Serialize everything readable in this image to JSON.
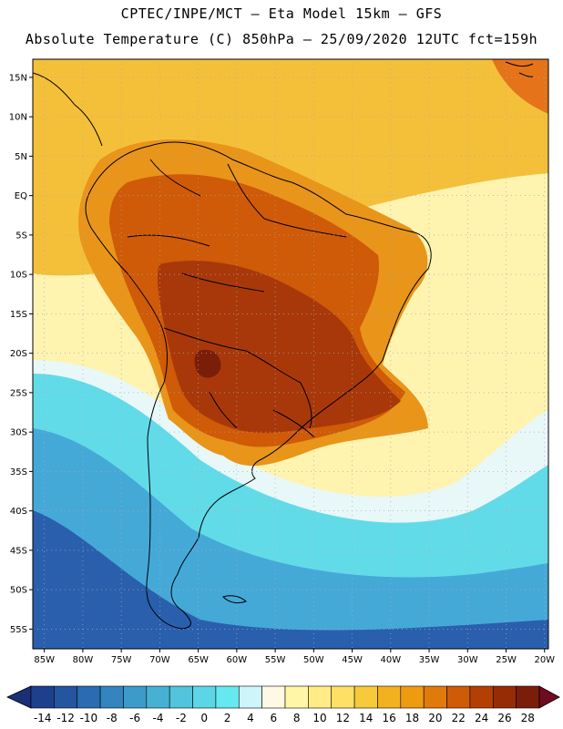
{
  "header": {
    "line1": "CPTEC/INPE/MCT –  Eta Model 15km – GFS",
    "line2": "Absolute Temperature (C) 850hPa – 25/09/2020 12UTC fct=159h"
  },
  "axes": {
    "lat_labels": [
      "15N",
      "10N",
      "5N",
      "EQ",
      "5S",
      "10S",
      "15S",
      "20S",
      "25S",
      "30S",
      "35S",
      "40S",
      "45S",
      "50S",
      "55S"
    ],
    "lat_values": [
      15,
      10,
      5,
      0,
      -5,
      -10,
      -15,
      -20,
      -25,
      -30,
      -35,
      -40,
      -45,
      -50,
      -55
    ],
    "lon_labels": [
      "85W",
      "80W",
      "75W",
      "70W",
      "65W",
      "60W",
      "55W",
      "50W",
      "45W",
      "40W",
      "35W",
      "30W",
      "25W",
      "20W"
    ],
    "lon_values": [
      -85,
      -80,
      -75,
      -70,
      -65,
      -60,
      -55,
      -50,
      -45,
      -40,
      -35,
      -30,
      -25,
      -20
    ],
    "lat_range": [
      -57.5,
      17.3
    ],
    "lon_range": [
      -86.5,
      -19.5
    ]
  },
  "colorbar": {
    "labels": [
      "-14",
      "-12",
      "-10",
      "-8",
      "-6",
      "-4",
      "-2",
      "0",
      "2",
      "4",
      "6",
      "8",
      "10",
      "12",
      "14",
      "16",
      "18",
      "20",
      "22",
      "24",
      "26",
      "28"
    ],
    "colors": [
      "#1e3f8c",
      "#24559f",
      "#2a6cb2",
      "#3384bf",
      "#3d9bcb",
      "#47b1d4",
      "#52c4dc",
      "#5cd6e6",
      "#66e8f0",
      "#cdf5fa",
      "#fff8e4",
      "#fff6a8",
      "#ffec86",
      "#ffe066",
      "#f7ca3c",
      "#f2b21f",
      "#ee9b12",
      "#e07a0a",
      "#cf5a07",
      "#b43f05",
      "#962c06",
      "#7a1e0a"
    ],
    "under_color": "#1a2f78",
    "over_color": "#6e0a22"
  },
  "regions": {
    "ocean_south_deep": "#2a5fae",
    "ocean_south_mid": "#45a9d8",
    "ocean_south_light": "#62dbe9",
    "band_white": "#e8f7f8",
    "ocean_mid": "#fff3b0",
    "ocean_north": "#f4c03a",
    "land_warm": "#e8951a",
    "land_hot": "#cf5a07",
    "land_very_hot": "#a8380a",
    "land_extreme": "#7a1e0a",
    "caribbean_hot": "#e5731a"
  }
}
